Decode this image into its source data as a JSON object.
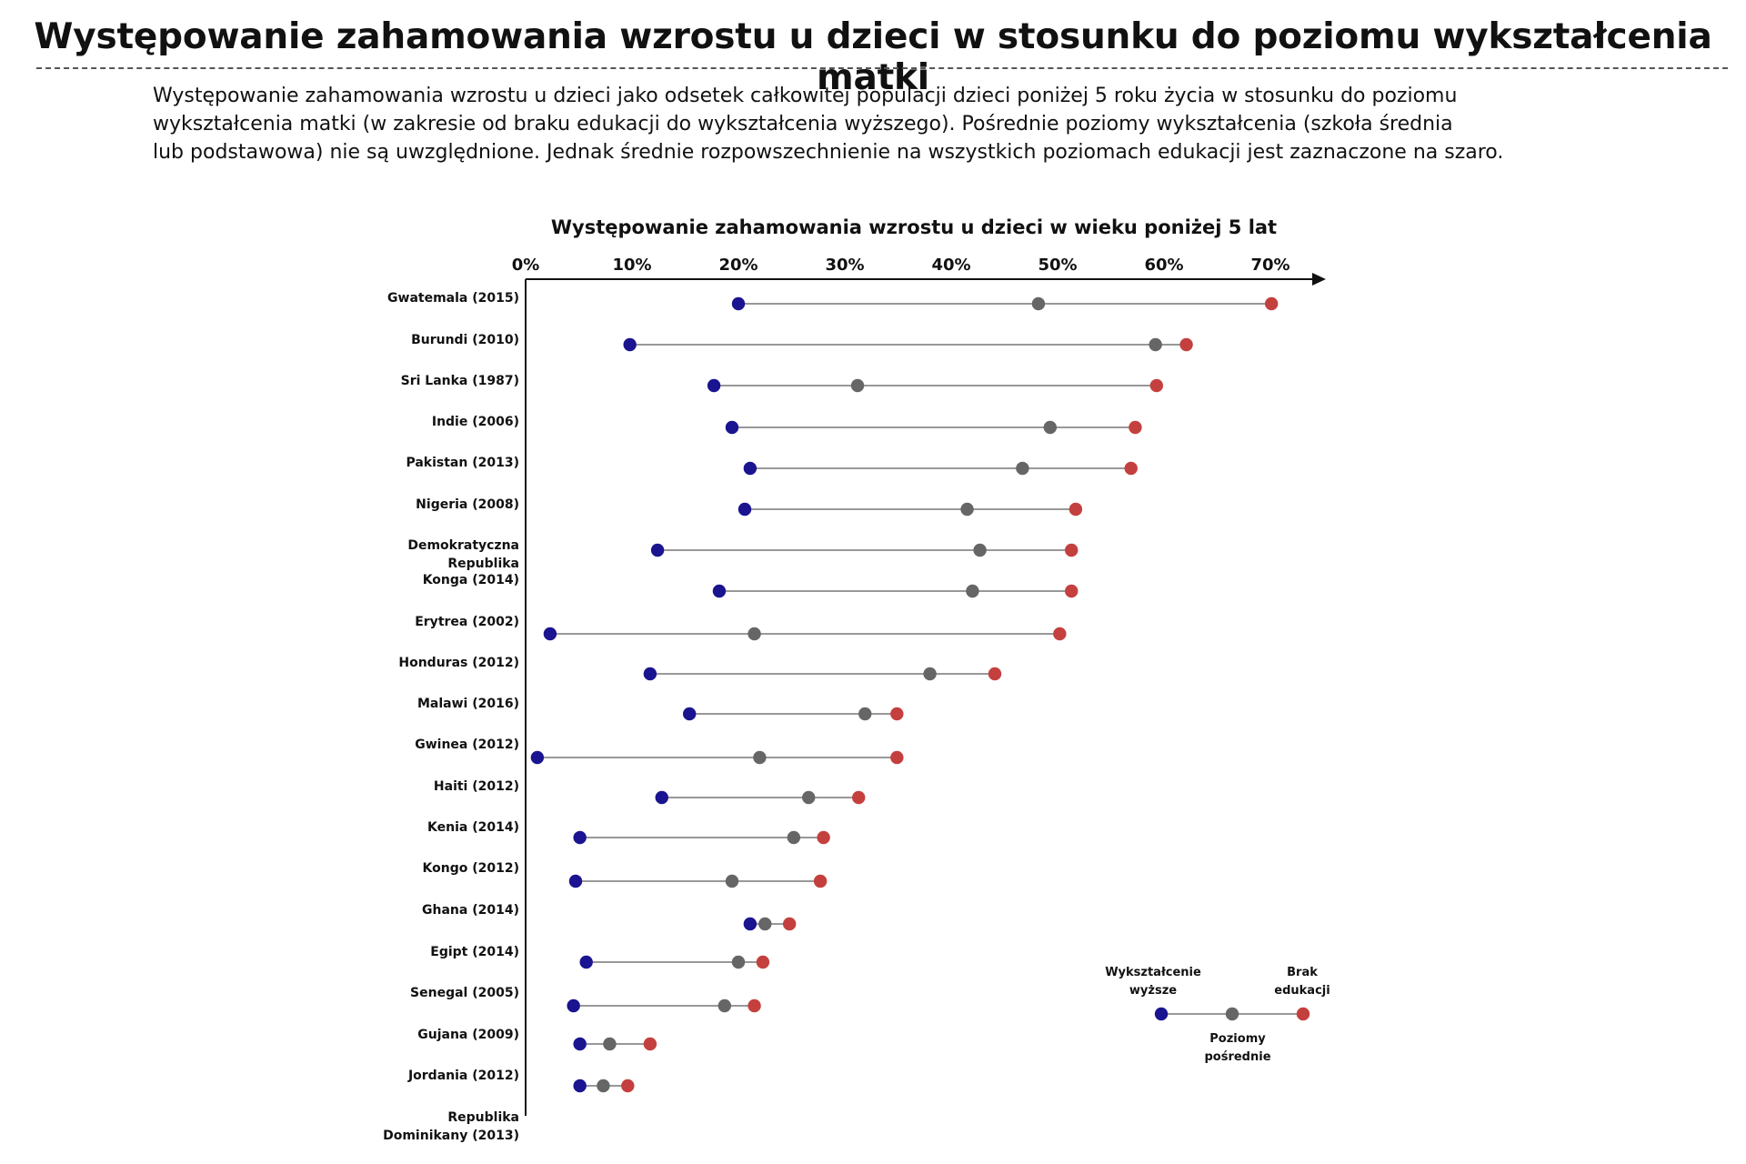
{
  "title": "Występowanie zahamowania wzrostu u dzieci w stosunku do poziomu wykształcenia matki",
  "description_lines": [
    "Występowanie zahamowania wzrostu u dzieci jako odsetek całkowitej populacji dzieci poniżej 5 roku życia w stosunku do poziomu",
    "wykształcenia matki (w zakresie od braku edukacji do wykształcenia wyższego). Pośrednie poziomy wykształcenia (szkoła średnia",
    "lub podstawowa) nie są uwzględnione. Jednak średnie rozpowszechnienie na wszystkich poziomach edukacji jest zaznaczone na szaro."
  ],
  "colors": {
    "higher": "#1a1490",
    "average": "#666666",
    "none": "#c4403e",
    "line": "#777777",
    "axis": "#111111"
  },
  "chart_data": {
    "type": "dot-range",
    "title": "Występowanie zahamowania wzrostu u dzieci w wieku poniżej 5 lat",
    "x_axis_position": "top",
    "xlim": [
      0,
      75
    ],
    "x_ticks": [
      0,
      10,
      20,
      30,
      40,
      50,
      60,
      70
    ],
    "x_tick_labels": [
      "0%",
      "10%",
      "20%",
      "30%",
      "40%",
      "50%",
      "60%",
      "70%"
    ],
    "row_labels": [
      [
        "Gwatemala (2015)"
      ],
      [
        "Burundi (2010)"
      ],
      [
        "Sri Lanka (1987)"
      ],
      [
        "Indie (2006)"
      ],
      [
        "Pakistan (2013)"
      ],
      [
        "Nigeria (2008)"
      ],
      [
        "Demokratyczna",
        "Republika"
      ],
      [
        "Konga (2014)"
      ],
      [
        "Erytrea (2002)"
      ],
      [
        "Honduras (2012)"
      ],
      [
        "Malawi (2016)"
      ],
      [
        "Gwinea (2012)"
      ],
      [
        "Haiti (2012)"
      ],
      [
        "Kenia (2014)"
      ],
      [
        "Kongo (2012)"
      ],
      [
        "Ghana (2014)"
      ],
      [
        "Egipt (2014)"
      ],
      [
        "Senegal (2005)"
      ],
      [
        "Gujana (2009)"
      ],
      [
        "Jordania (2012)"
      ],
      [
        "Republika",
        "Dominikany (2013)"
      ]
    ],
    "series": [
      {
        "name": "Wykształcenie wyższe",
        "values": [
          20.0,
          9.8,
          17.7,
          19.4,
          21.1,
          20.6,
          12.4,
          18.2,
          2.3,
          11.7,
          15.4,
          1.1,
          12.8,
          5.1,
          4.7,
          21.1,
          5.7,
          4.5,
          5.1,
          5.1
        ]
      },
      {
        "name": "Poziomy pośrednie",
        "values": [
          48.2,
          59.2,
          31.2,
          49.3,
          46.7,
          41.5,
          42.7,
          42.0,
          21.5,
          38.0,
          31.9,
          22.0,
          26.6,
          25.2,
          19.4,
          22.5,
          20.0,
          18.7,
          7.9,
          7.3
        ]
      },
      {
        "name": "Brak edukacji",
        "values": [
          70.1,
          62.1,
          59.3,
          57.3,
          56.9,
          51.7,
          51.3,
          51.3,
          50.2,
          44.1,
          34.9,
          34.9,
          31.3,
          28.0,
          27.7,
          24.8,
          22.3,
          21.5,
          11.7,
          9.6
        ]
      }
    ]
  },
  "legend": {
    "higher_label": [
      "Wykształcenie",
      "wyższe"
    ],
    "none_label": [
      "Brak",
      "edukacji"
    ],
    "intermediate_label": [
      "Poziomy",
      "pośrednie"
    ]
  }
}
